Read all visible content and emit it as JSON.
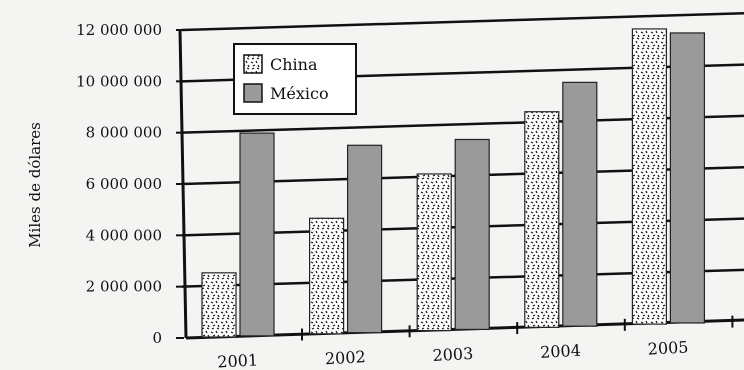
{
  "chart_data": {
    "type": "bar",
    "categories": [
      "2001",
      "2002",
      "2003",
      "2004",
      "2005"
    ],
    "series": [
      {
        "name": "China",
        "values": [
          2500000,
          4500000,
          6100000,
          8400000,
          11500000
        ],
        "color": "#ffffff",
        "pattern": "speckled"
      },
      {
        "name": "México",
        "values": [
          7900000,
          7300000,
          7400000,
          9500000,
          11300000
        ],
        "color": "#9a9a9a"
      }
    ],
    "title": "",
    "xlabel": "",
    "ylabel": "Miles de dólares",
    "ylim": [
      0,
      12000000
    ],
    "yticks": [
      "0",
      "2 000 000",
      "4 000 000",
      "6 000 000",
      "8 000 000",
      "10 000 000",
      "12 000 000"
    ],
    "grid": true,
    "legend_position": "top-left"
  }
}
